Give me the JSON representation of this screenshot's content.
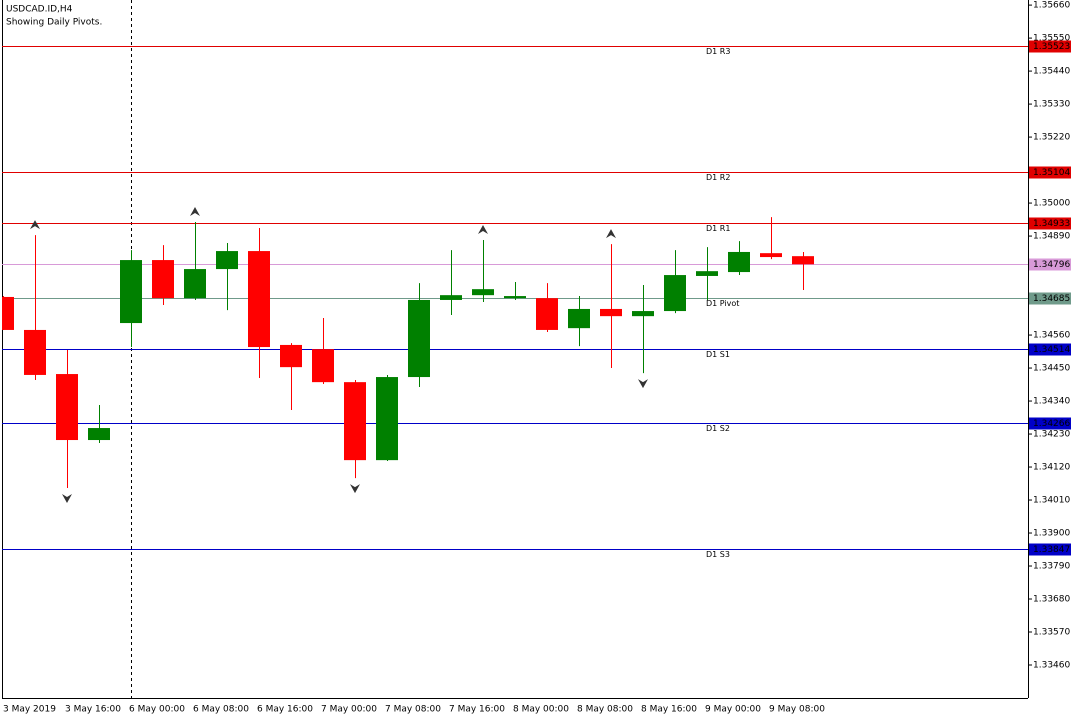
{
  "chart_data": {
    "type": "candlestick",
    "title": "USDCAD.ID,H4",
    "subtitle": "Showing Daily Pivots.",
    "categories": [
      "3 May 2019",
      null,
      "3 May 16:00",
      null,
      "6 May 00:00",
      null,
      "6 May 08:00",
      null,
      "6 May 16:00",
      null,
      "7 May 00:00",
      null,
      "7 May 08:00",
      null,
      "7 May 16:00",
      null,
      "8 May 00:00",
      null,
      "8 May 08:00",
      null,
      "8 May 16:00",
      null,
      "9 May 00:00",
      null,
      "9 May 08:00",
      null
    ],
    "open": [
      1.34687,
      1.34577,
      1.3443,
      1.3421,
      1.346,
      1.3481,
      1.34683,
      1.3478,
      1.3484,
      1.34527,
      1.34513,
      1.34403,
      1.34143,
      1.3442,
      1.34677,
      1.34693,
      1.34683,
      1.34683,
      1.34583,
      1.34647,
      1.34623,
      1.3464,
      1.34757,
      1.3477,
      1.34833,
      1.34823
    ],
    "high": [
      1.3469,
      1.34893,
      1.3451,
      1.34327,
      1.34843,
      1.3486,
      1.34937,
      1.34867,
      1.34917,
      1.34533,
      1.34617,
      1.3441,
      1.34427,
      1.34733,
      1.34843,
      1.34877,
      1.34737,
      1.34733,
      1.3469,
      1.34863,
      1.34727,
      1.34843,
      1.34853,
      1.34873,
      1.34953,
      1.34837
    ],
    "low": [
      1.34577,
      1.3441,
      1.3405,
      1.342,
      1.3452,
      1.3466,
      1.34677,
      1.34643,
      1.34417,
      1.3431,
      1.34397,
      1.34083,
      1.3414,
      1.34387,
      1.34627,
      1.3467,
      1.34677,
      1.3457,
      1.34523,
      1.3445,
      1.34433,
      1.34633,
      1.34677,
      1.3476,
      1.34813,
      1.3471
    ],
    "close": [
      1.34577,
      1.34427,
      1.3421,
      1.3425,
      1.3481,
      1.34683,
      1.3478,
      1.3484,
      1.3452,
      1.34453,
      1.34403,
      1.34143,
      1.3442,
      1.34677,
      1.34693,
      1.34713,
      1.3469,
      1.34577,
      1.34647,
      1.34623,
      1.3464,
      1.3476,
      1.34773,
      1.34837,
      1.3482,
      1.34796
    ],
    "up_color": "#008000",
    "down_color": "#ff0000",
    "up_fractals": [
      1,
      6,
      15,
      19
    ],
    "down_fractals": [
      2,
      11,
      20
    ],
    "levels": [
      {
        "name": "D1 R3",
        "value": 1.35523,
        "color": "#e00000"
      },
      {
        "name": "D1 R2",
        "value": 1.35104,
        "color": "#e00000"
      },
      {
        "name": "D1 R1",
        "value": 1.34933,
        "color": "#e00000"
      },
      {
        "name": "D1 Pivot",
        "value": 1.34685,
        "color": "#6f9a8a"
      },
      {
        "name": "D1 S1",
        "value": 1.34514,
        "color": "#0000c8"
      },
      {
        "name": "D1 S2",
        "value": 1.34266,
        "color": "#0000c8"
      },
      {
        "name": "D1 S3",
        "value": 1.33847,
        "color": "#0000c8"
      }
    ],
    "current_price": 1.34796,
    "current_price_color": "#d89ad8",
    "ylim": [
      1.3335,
      1.35677
    ],
    "yticks": [
      {
        "value": 1.3566,
        "label": "1.35660"
      },
      {
        "value": 1.3555,
        "label": "1.35550"
      },
      {
        "value": 1.3544,
        "label": "1.35440"
      },
      {
        "value": 1.3533,
        "label": "1.35330"
      },
      {
        "value": 1.3522,
        "label": "1.35220"
      },
      {
        "value": 1.35,
        "label": "1.35000"
      },
      {
        "value": 1.3489,
        "label": "1.34890"
      },
      {
        "value": 1.3456,
        "label": "1.34560"
      },
      {
        "value": 1.3445,
        "label": "1.34450"
      },
      {
        "value": 1.3434,
        "label": "1.34340"
      },
      {
        "value": 1.3423,
        "label": "1.34230"
      },
      {
        "value": 1.3412,
        "label": "1.34120"
      },
      {
        "value": 1.3401,
        "label": "1.34010"
      },
      {
        "value": 1.339,
        "label": "1.33900"
      },
      {
        "value": 1.3379,
        "label": "1.33790"
      },
      {
        "value": 1.3368,
        "label": "1.33680"
      },
      {
        "value": 1.3357,
        "label": "1.33570"
      },
      {
        "value": 1.3346,
        "label": "1.33460"
      }
    ]
  }
}
